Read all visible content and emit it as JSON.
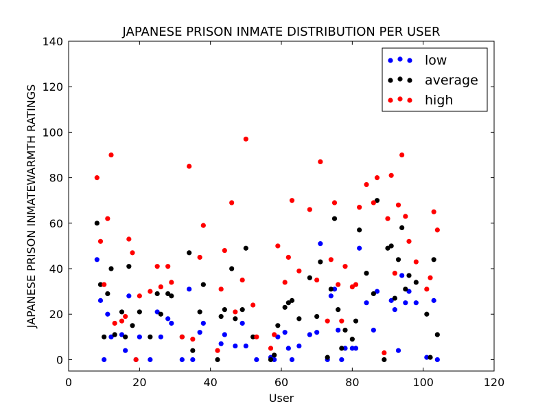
{
  "chart_data": {
    "type": "scatter",
    "title": "JAPANESE PRISON INMATE DISTRIBUTION PER USER",
    "xlabel": "User",
    "ylabel": "JAPANESE PRISON INMATEWARMTH RATINGS",
    "xlim": [
      0,
      120
    ],
    "ylim": [
      -5,
      140
    ],
    "xticks": [
      0,
      20,
      40,
      60,
      80,
      100,
      120
    ],
    "yticks": [
      0,
      20,
      40,
      60,
      80,
      100,
      120,
      140
    ],
    "grid": false,
    "legend_position": "top-right",
    "series": [
      {
        "name": "low",
        "color": "#0000ff",
        "points": [
          [
            8,
            44
          ],
          [
            9,
            26
          ],
          [
            10,
            0
          ],
          [
            11,
            20
          ],
          [
            12,
            10
          ],
          [
            15,
            11
          ],
          [
            16,
            4
          ],
          [
            17,
            28
          ],
          [
            19,
            0
          ],
          [
            20,
            10
          ],
          [
            23,
            0
          ],
          [
            25,
            21
          ],
          [
            26,
            10
          ],
          [
            28,
            18
          ],
          [
            29,
            16
          ],
          [
            32,
            0
          ],
          [
            34,
            31
          ],
          [
            35,
            0
          ],
          [
            37,
            12
          ],
          [
            38,
            16
          ],
          [
            43,
            7
          ],
          [
            44,
            11
          ],
          [
            47,
            6
          ],
          [
            49,
            16
          ],
          [
            50,
            6
          ],
          [
            53,
            0
          ],
          [
            57,
            1
          ],
          [
            58,
            0
          ],
          [
            59,
            10
          ],
          [
            61,
            12
          ],
          [
            62,
            5
          ],
          [
            63,
            0
          ],
          [
            65,
            6
          ],
          [
            68,
            11
          ],
          [
            70,
            12
          ],
          [
            71,
            51
          ],
          [
            73,
            0
          ],
          [
            74,
            28
          ],
          [
            75,
            31
          ],
          [
            76,
            13
          ],
          [
            77,
            0
          ],
          [
            78,
            5
          ],
          [
            80,
            5
          ],
          [
            81,
            5
          ],
          [
            82,
            49
          ],
          [
            84,
            25
          ],
          [
            86,
            13
          ],
          [
            87,
            30
          ],
          [
            91,
            26
          ],
          [
            92,
            22
          ],
          [
            93,
            4
          ],
          [
            94,
            37
          ],
          [
            95,
            25
          ],
          [
            96,
            30
          ],
          [
            98,
            25
          ],
          [
            101,
            1
          ],
          [
            103,
            26
          ],
          [
            104,
            0
          ]
        ]
      },
      {
        "name": "average",
        "color": "#000000",
        "points": [
          [
            8,
            60
          ],
          [
            9,
            33
          ],
          [
            10,
            10
          ],
          [
            11,
            29
          ],
          [
            12,
            40
          ],
          [
            13,
            11
          ],
          [
            15,
            21
          ],
          [
            16,
            10
          ],
          [
            17,
            41
          ],
          [
            18,
            15
          ],
          [
            20,
            21
          ],
          [
            23,
            10
          ],
          [
            25,
            29
          ],
          [
            26,
            20
          ],
          [
            28,
            29
          ],
          [
            29,
            28
          ],
          [
            32,
            10
          ],
          [
            34,
            47
          ],
          [
            35,
            4
          ],
          [
            37,
            21
          ],
          [
            38,
            33
          ],
          [
            42,
            0
          ],
          [
            43,
            19
          ],
          [
            44,
            22
          ],
          [
            46,
            40
          ],
          [
            47,
            18
          ],
          [
            49,
            22
          ],
          [
            50,
            49
          ],
          [
            52,
            10
          ],
          [
            57,
            0
          ],
          [
            58,
            2
          ],
          [
            59,
            15
          ],
          [
            61,
            23
          ],
          [
            62,
            25
          ],
          [
            63,
            26
          ],
          [
            65,
            18
          ],
          [
            68,
            36
          ],
          [
            70,
            19
          ],
          [
            71,
            43
          ],
          [
            73,
            1
          ],
          [
            74,
            31
          ],
          [
            75,
            62
          ],
          [
            76,
            22
          ],
          [
            77,
            5
          ],
          [
            78,
            13
          ],
          [
            80,
            9
          ],
          [
            81,
            17
          ],
          [
            82,
            57
          ],
          [
            84,
            38
          ],
          [
            86,
            29
          ],
          [
            87,
            70
          ],
          [
            89,
            0
          ],
          [
            90,
            49
          ],
          [
            91,
            50
          ],
          [
            92,
            27
          ],
          [
            93,
            44
          ],
          [
            94,
            58
          ],
          [
            95,
            31
          ],
          [
            96,
            37
          ],
          [
            98,
            34
          ],
          [
            101,
            20
          ],
          [
            102,
            1
          ],
          [
            103,
            44
          ],
          [
            104,
            11
          ]
        ]
      },
      {
        "name": "high",
        "color": "#ff0000",
        "points": [
          [
            8,
            80
          ],
          [
            9,
            52
          ],
          [
            10,
            33
          ],
          [
            11,
            62
          ],
          [
            12,
            90
          ],
          [
            13,
            16
          ],
          [
            15,
            17
          ],
          [
            16,
            19
          ],
          [
            17,
            53
          ],
          [
            18,
            47
          ],
          [
            19,
            0
          ],
          [
            20,
            28
          ],
          [
            23,
            30
          ],
          [
            25,
            41
          ],
          [
            26,
            32
          ],
          [
            28,
            41
          ],
          [
            29,
            34
          ],
          [
            32,
            10
          ],
          [
            34,
            85
          ],
          [
            35,
            9
          ],
          [
            37,
            45
          ],
          [
            38,
            59
          ],
          [
            42,
            4
          ],
          [
            43,
            31
          ],
          [
            44,
            48
          ],
          [
            46,
            69
          ],
          [
            47,
            21
          ],
          [
            49,
            35
          ],
          [
            50,
            97
          ],
          [
            52,
            24
          ],
          [
            53,
            10
          ],
          [
            57,
            5
          ],
          [
            58,
            11
          ],
          [
            59,
            50
          ],
          [
            61,
            34
          ],
          [
            62,
            45
          ],
          [
            63,
            70
          ],
          [
            65,
            39
          ],
          [
            68,
            66
          ],
          [
            70,
            35
          ],
          [
            71,
            87
          ],
          [
            73,
            17
          ],
          [
            74,
            44
          ],
          [
            75,
            69
          ],
          [
            76,
            33
          ],
          [
            78,
            41
          ],
          [
            77,
            17
          ],
          [
            80,
            32
          ],
          [
            81,
            33
          ],
          [
            82,
            67
          ],
          [
            84,
            77
          ],
          [
            86,
            69
          ],
          [
            87,
            80
          ],
          [
            89,
            3
          ],
          [
            90,
            62
          ],
          [
            91,
            81
          ],
          [
            92,
            38
          ],
          [
            93,
            68
          ],
          [
            94,
            90
          ],
          [
            95,
            63
          ],
          [
            96,
            52
          ],
          [
            98,
            43
          ],
          [
            101,
            31
          ],
          [
            102,
            36
          ],
          [
            103,
            65
          ],
          [
            104,
            57
          ]
        ]
      }
    ]
  }
}
